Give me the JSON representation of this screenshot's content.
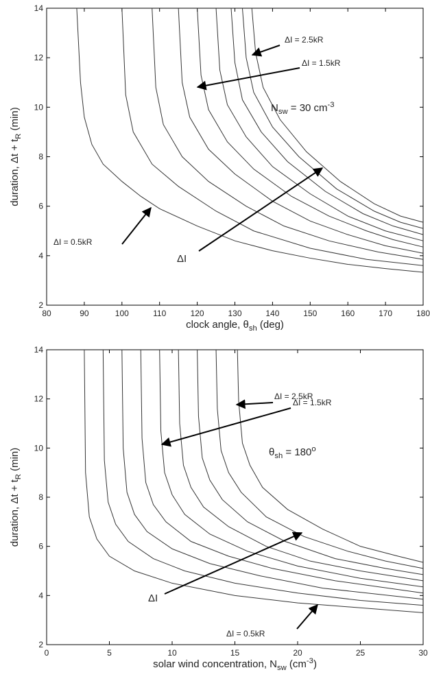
{
  "chart_data": [
    {
      "type": "line",
      "xlabel": [
        {
          "t": "clock angle, θ"
        },
        {
          "sub": "sh"
        },
        {
          "t": " (deg)"
        }
      ],
      "ylabel": [
        {
          "t": "duration, Δt + t"
        },
        {
          "sub": "R"
        },
        {
          "t": " (min)"
        }
      ],
      "xlim": [
        80,
        180
      ],
      "ylim": [
        2,
        14
      ],
      "xticks": [
        80,
        90,
        100,
        110,
        120,
        130,
        140,
        150,
        160,
        170,
        180
      ],
      "yticks": [
        2,
        4,
        6,
        8,
        10,
        12,
        14
      ],
      "annotations": [
        [
          {
            "t": "ΔI = 2.5kR"
          }
        ],
        [
          {
            "t": "ΔI = 1.5kR"
          }
        ],
        [
          {
            "t": "N"
          },
          {
            "sub": "sw"
          },
          {
            "t": " = 30 cm"
          },
          {
            "sup": "-3"
          }
        ],
        [
          {
            "t": "ΔI = 0.5kR"
          }
        ],
        [
          {
            "t": "ΔI"
          }
        ]
      ],
      "series": [
        {
          "color": "#333333",
          "x": [
            88,
            89,
            90,
            92,
            95,
            100,
            105,
            110,
            120,
            130,
            140,
            150,
            160,
            170,
            180
          ],
          "values": [
            14,
            11,
            9.6,
            8.5,
            7.7,
            7.0,
            6.4,
            5.9,
            5.2,
            4.6,
            4.2,
            3.9,
            3.65,
            3.48,
            3.33
          ]
        },
        {
          "color": "#333333",
          "x": [
            100,
            101,
            103,
            108,
            115,
            125,
            135,
            150,
            165,
            180
          ],
          "values": [
            14,
            10.5,
            9.0,
            7.7,
            6.8,
            5.8,
            5.0,
            4.3,
            3.85,
            3.6
          ]
        },
        {
          "color": "#333333",
          "x": [
            108,
            109,
            111,
            116,
            123,
            133,
            143,
            155,
            168,
            180
          ],
          "values": [
            14,
            10.8,
            9.3,
            8.0,
            7.0,
            6.0,
            5.2,
            4.6,
            4.15,
            3.85
          ]
        },
        {
          "color": "#333333",
          "x": [
            115,
            116,
            118,
            123,
            130,
            140,
            150,
            160,
            170,
            180
          ],
          "values": [
            14,
            11,
            9.6,
            8.3,
            7.3,
            6.2,
            5.4,
            4.85,
            4.4,
            4.1
          ]
        },
        {
          "color": "#333333",
          "x": [
            120,
            121,
            123,
            128,
            135,
            145,
            155,
            165,
            172,
            180
          ],
          "values": [
            14,
            11.3,
            9.9,
            8.6,
            7.5,
            6.4,
            5.6,
            5.0,
            4.65,
            4.35
          ]
        },
        {
          "color": "#333333",
          "x": [
            125,
            126,
            128,
            133,
            140,
            150,
            160,
            170,
            180
          ],
          "values": [
            14,
            11.5,
            10.1,
            8.8,
            7.6,
            6.5,
            5.6,
            5.0,
            4.6
          ]
        },
        {
          "color": "#333333",
          "x": [
            129,
            130,
            132,
            137,
            144,
            154,
            164,
            172,
            180
          ],
          "values": [
            14,
            11.8,
            10.3,
            9.0,
            7.8,
            6.6,
            5.7,
            5.2,
            4.85
          ]
        },
        {
          "color": "#333333",
          "x": [
            132,
            133,
            135,
            140,
            147,
            157,
            167,
            174,
            180
          ],
          "values": [
            14,
            12,
            10.6,
            9.2,
            8.0,
            6.7,
            5.8,
            5.35,
            5.1
          ]
        },
        {
          "color": "#333333",
          "x": [
            134.5,
            135.5,
            137.5,
            142,
            149,
            158,
            167,
            174,
            180
          ],
          "values": [
            14,
            12.2,
            10.8,
            9.5,
            8.2,
            7.0,
            6.1,
            5.6,
            5.35
          ]
        }
      ]
    },
    {
      "type": "line",
      "xlabel": [
        {
          "t": "solar wind concentration, N"
        },
        {
          "sub": "sw"
        },
        {
          "t": " (cm"
        },
        {
          "sup": "-3"
        },
        {
          "t": ")"
        }
      ],
      "ylabel": [
        {
          "t": "duration, Δt + t"
        },
        {
          "sub": "R"
        },
        {
          "t": " (min)"
        }
      ],
      "xlim": [
        0,
        30
      ],
      "ylim": [
        2,
        14
      ],
      "xticks": [
        0,
        5,
        10,
        15,
        20,
        25,
        30
      ],
      "yticks": [
        2,
        4,
        6,
        8,
        10,
        12,
        14
      ],
      "annotations": [
        [
          {
            "t": "ΔI = 2.5kR"
          }
        ],
        [
          {
            "t": "ΔI = 1.5kR"
          }
        ],
        [
          {
            "t": "θ"
          },
          {
            "sub": "sh"
          },
          {
            "t": " = 180"
          },
          {
            "sup": "o"
          }
        ],
        [
          {
            "t": "ΔI"
          }
        ],
        [
          {
            "t": "ΔI = 0.5kR"
          }
        ]
      ],
      "series": [
        {
          "color": "#333333",
          "x": [
            3,
            3.1,
            3.4,
            4,
            5,
            7,
            10,
            15,
            20,
            25,
            30
          ],
          "values": [
            14,
            9,
            7.2,
            6.3,
            5.6,
            5.0,
            4.5,
            4.0,
            3.7,
            3.5,
            3.3
          ]
        },
        {
          "color": "#333333",
          "x": [
            4.5,
            4.6,
            4.9,
            5.5,
            6.5,
            8.5,
            11,
            15,
            20,
            25,
            30
          ],
          "values": [
            14,
            9.5,
            7.8,
            6.9,
            6.2,
            5.5,
            5.0,
            4.5,
            4.1,
            3.8,
            3.6
          ]
        },
        {
          "color": "#333333",
          "x": [
            6,
            6.1,
            6.4,
            7,
            8,
            10,
            13,
            17,
            22,
            30
          ],
          "values": [
            14,
            10,
            8.2,
            7.3,
            6.6,
            5.9,
            5.3,
            4.8,
            4.3,
            3.85
          ]
        },
        {
          "color": "#333333",
          "x": [
            7.5,
            7.6,
            7.9,
            8.5,
            9.5,
            11.5,
            14.5,
            18,
            23,
            30
          ],
          "values": [
            14,
            10.4,
            8.6,
            7.7,
            7.0,
            6.2,
            5.6,
            5.1,
            4.6,
            4.1
          ]
        },
        {
          "color": "#333333",
          "x": [
            9,
            9.1,
            9.4,
            10,
            11,
            13,
            16,
            20,
            25,
            30
          ],
          "values": [
            14,
            10.7,
            9.0,
            8.1,
            7.3,
            6.5,
            5.8,
            5.2,
            4.7,
            4.35
          ]
        },
        {
          "color": "#333333",
          "x": [
            10.5,
            10.6,
            10.9,
            11.5,
            12.5,
            14.5,
            17.5,
            21,
            25,
            30
          ],
          "values": [
            14,
            11,
            9.3,
            8.4,
            7.6,
            6.8,
            6.0,
            5.4,
            5.0,
            4.6
          ]
        },
        {
          "color": "#333333",
          "x": [
            12,
            12.1,
            12.4,
            13,
            14,
            16,
            19,
            23,
            27,
            30
          ],
          "values": [
            14,
            11.3,
            9.6,
            8.7,
            7.9,
            7.0,
            6.2,
            5.5,
            5.1,
            4.85
          ]
        },
        {
          "color": "#333333",
          "x": [
            13.5,
            13.6,
            13.9,
            14.5,
            15.5,
            17.5,
            20.5,
            24,
            27,
            30
          ],
          "values": [
            14,
            11.6,
            9.9,
            9.0,
            8.2,
            7.2,
            6.4,
            5.8,
            5.4,
            5.1
          ]
        },
        {
          "color": "#333333",
          "x": [
            15.2,
            15.3,
            15.6,
            16.2,
            17.2,
            19.2,
            22,
            25,
            28,
            30
          ],
          "values": [
            14,
            11.9,
            10.2,
            9.3,
            8.4,
            7.5,
            6.7,
            6.0,
            5.6,
            5.35
          ]
        }
      ]
    }
  ]
}
